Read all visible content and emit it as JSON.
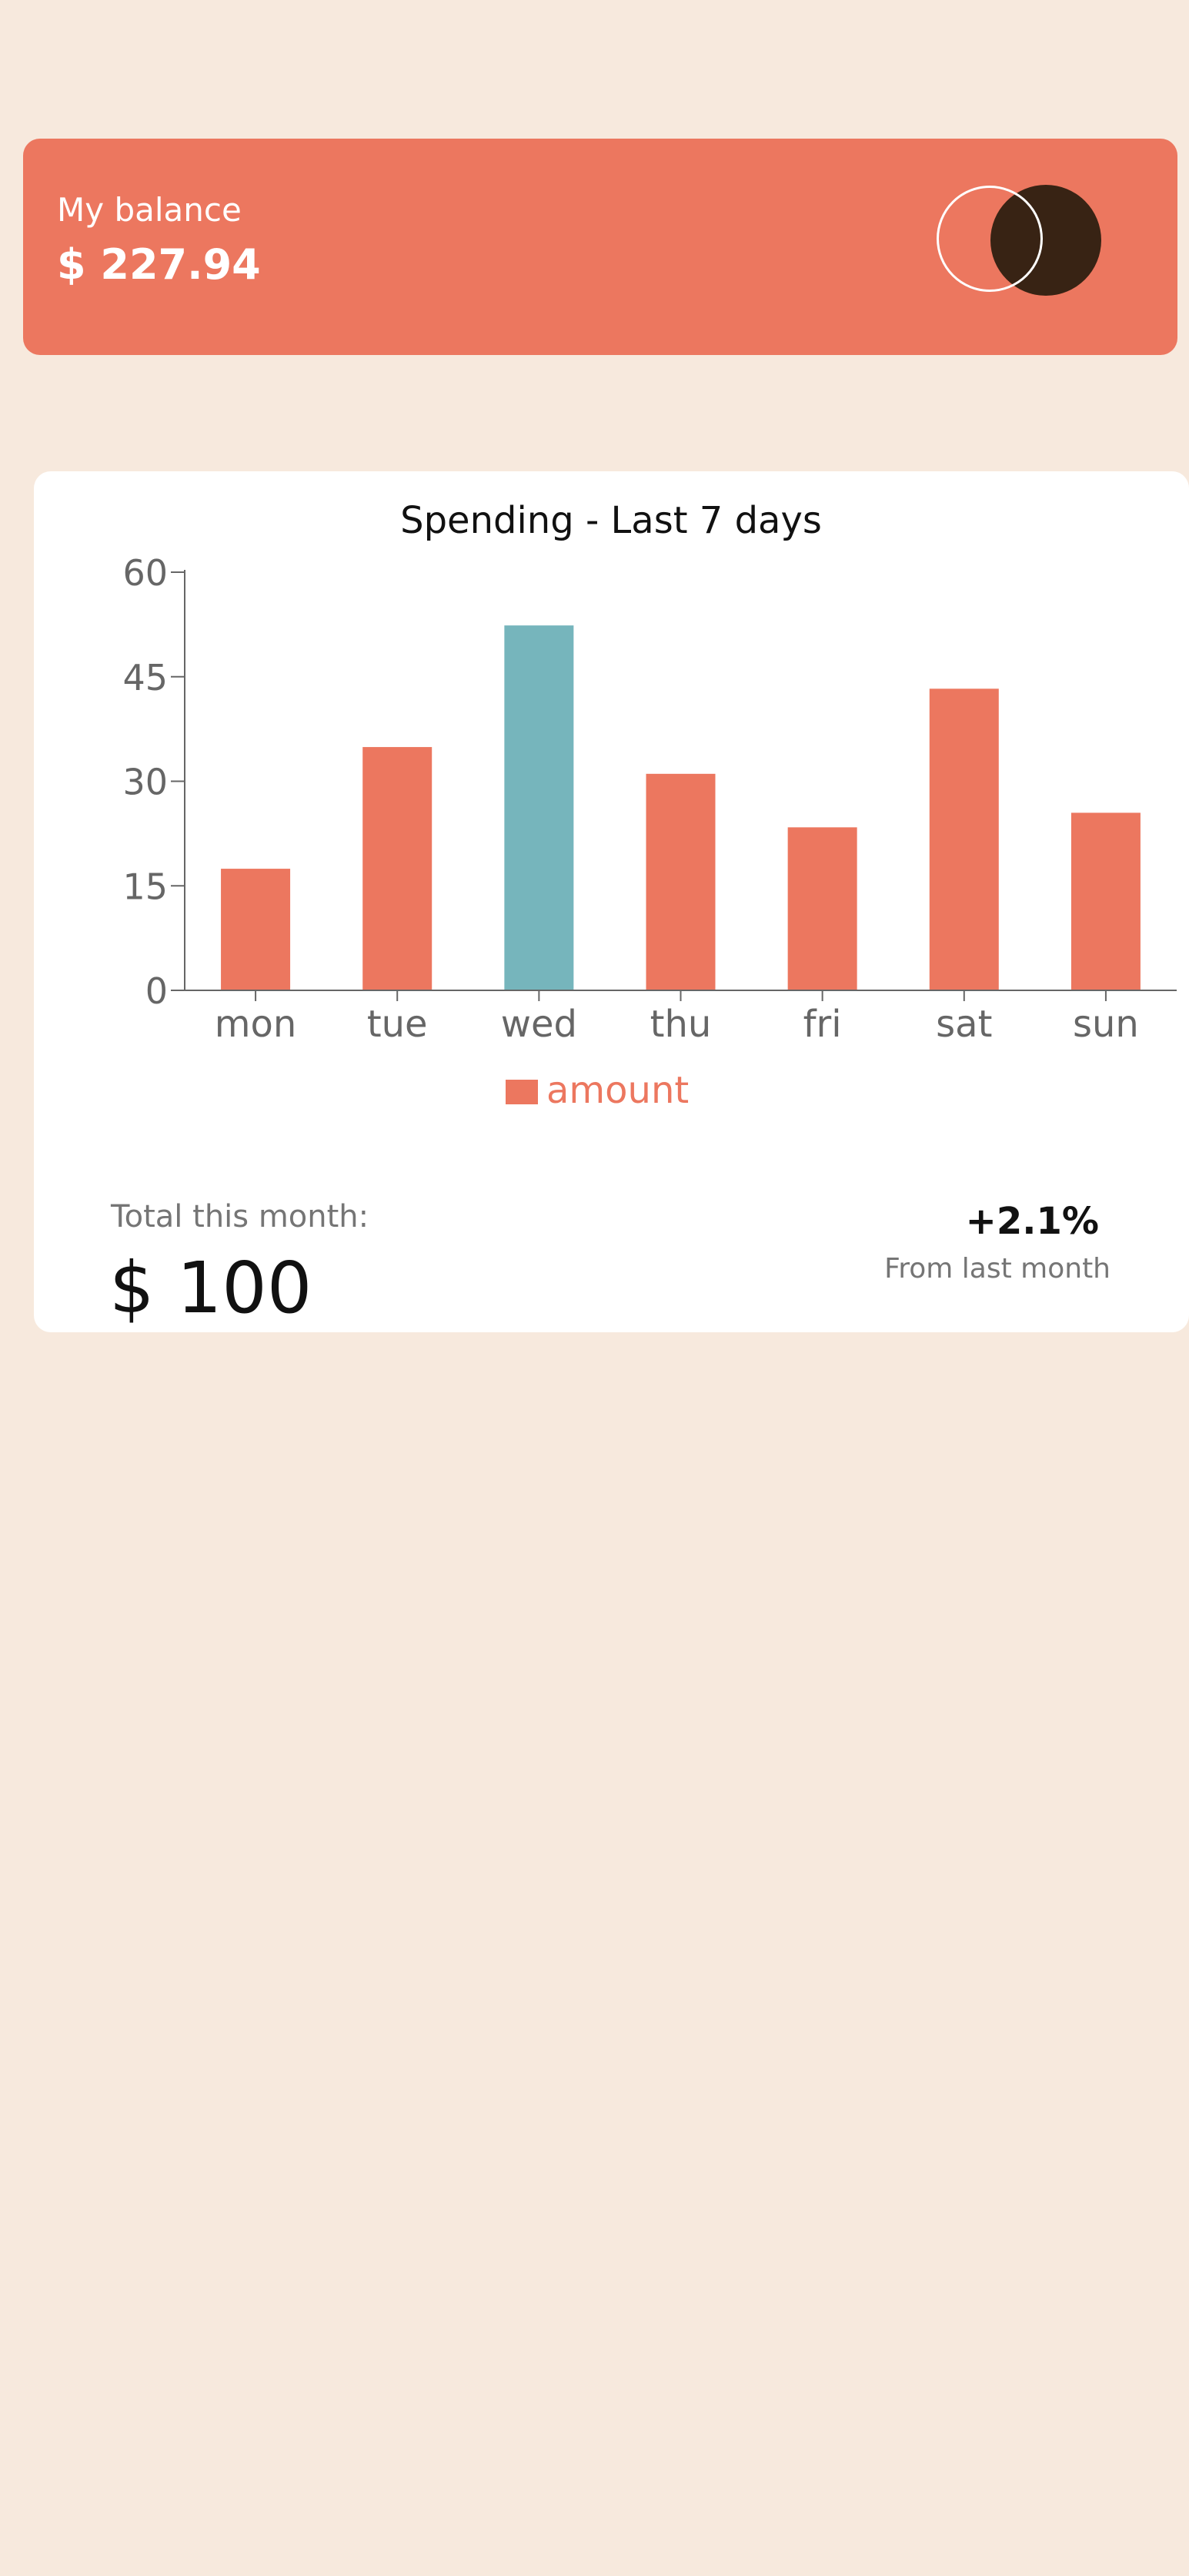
{
  "balance": {
    "label": "My balance",
    "amount": "$ 227.94",
    "logo_icon": "overlapping-circles-logo-icon"
  },
  "spending": {
    "total_label": "Total this month:",
    "total_value": "$ 100",
    "change_percent": "+2.1%",
    "change_label": "From last month"
  },
  "colors": {
    "background": "#f7e9dd",
    "accent": "#ec775f",
    "highlight": "#76b5bc",
    "dark": "#382314",
    "card": "#ffffff"
  },
  "chart_data": {
    "type": "bar",
    "title": "Spending - Last 7 days",
    "categories": [
      "mon",
      "tue",
      "wed",
      "thu",
      "fri",
      "sat",
      "sun"
    ],
    "series": [
      {
        "name": "amount",
        "values": [
          17.45,
          34.91,
          52.36,
          31.07,
          23.39,
          43.28,
          25.48
        ]
      }
    ],
    "highlight_category": "wed",
    "xlabel": "",
    "ylabel": "",
    "ylim": [
      0,
      60
    ],
    "yticks": [
      0,
      15,
      30,
      45,
      60
    ],
    "grid": false,
    "legend": "bottom-center"
  }
}
